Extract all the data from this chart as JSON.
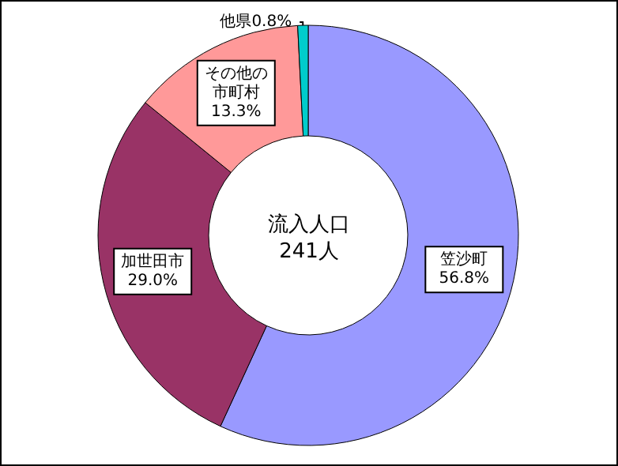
{
  "chart_data": {
    "type": "donut",
    "title": "流入人口",
    "subtitle": "241人",
    "categories": [
      "笠沙町",
      "加世田市",
      "その他の市町村",
      "他県"
    ],
    "values": [
      56.8,
      29.0,
      13.3,
      0.8
    ],
    "colors": [
      "#9999ff",
      "#993366",
      "#ff9999",
      "#00cccc"
    ],
    "value_labels": [
      "56.8%",
      "29.0%",
      "13.3%",
      "0.8%"
    ]
  }
}
